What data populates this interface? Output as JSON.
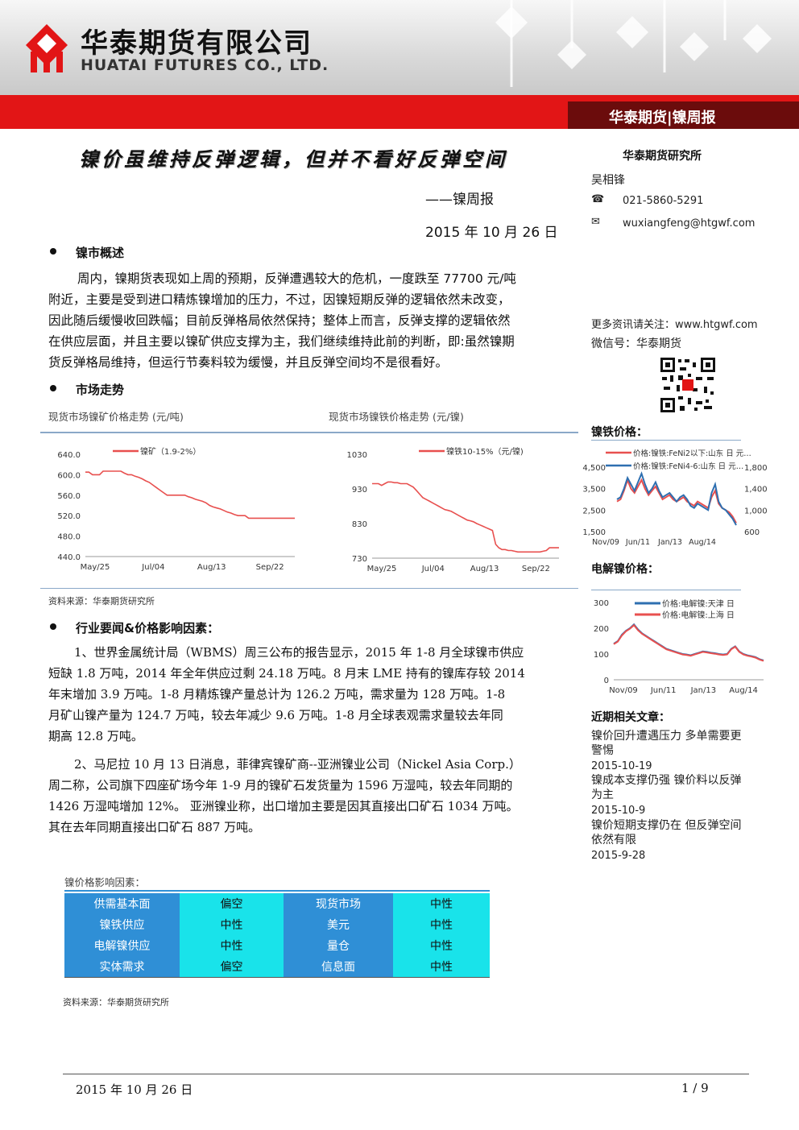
{
  "header": {
    "company_cn": "华泰期货有限公司",
    "company_en": "HUATAI FUTURES CO., LTD.",
    "tag": "华泰期货|镍周报",
    "brand_red": "#e21516"
  },
  "title": "镍价虽维持反弹逻辑，但并不看好反弹空间",
  "subtitle": "——镍周报",
  "date": "2015 年 10 月 26 日",
  "sections": {
    "overview": {
      "heading": "镍市概述",
      "lines": [
        "周内，镍期货表现如上周的预期，反弹遭遇较大的危机，一度跌至 77700 元/吨",
        "附近，主要是受到进口精炼镍增加的压力，不过，因镍短期反弹的逻辑依然未改变，",
        "因此随后缓慢收回跌幅；目前反弹格局依然保持；整体上而言，反弹支撑的逻辑依然",
        "在供应层面，并且主要以镍矿供应支撑为主，我们继续维持此前的判断，即:虽然镍期",
        "货反弹格局维持，但运行节奏料较为缓慢，并且反弹空间均不是很看好。"
      ]
    },
    "market": {
      "heading": "市场走势",
      "chart1_caption": "现货市场镍矿价格走势 (元/吨)",
      "chart2_caption": "现货市场镍铁价格走势 (元/镍)",
      "source": "资料来源：华泰期货研究所"
    },
    "news": {
      "heading": "行业要闻&价格影响因素：",
      "p1": [
        "1、世界金属统计局（WBMS）周三公布的报告显示，2015 年 1-8 月全球镍市供应",
        "短缺 1.8 万吨，2014 年全年供应过剩 24.18 万吨。8 月末 LME 持有的镍库存较 2014",
        "年末增加 3.9 万吨。1-8 月精炼镍产量总计为 126.2 万吨，需求量为 128 万吨。1-8",
        "月矿山镍产量为 124.7 万吨，较去年减少 9.6 万吨。1-8 月全球表观需求量较去年同",
        "期高 12.8 万吨。"
      ],
      "p2": [
        "2、马尼拉 10 月 13 日消息，菲律宾镍矿商--亚洲镍业公司（Nickel Asia Corp.）",
        "周二称，公司旗下四座矿场今年 1-9 月的镍矿石发货量为 1596 万湿吨，较去年同期的",
        "1426 万湿吨增加 12%。      亚洲镍业称，出口增加主要是因其直接出口矿石 1034 万吨。",
        "其在去年同期直接出口矿石 887 万吨。"
      ]
    },
    "factors": {
      "caption": "镍价格影响因素：",
      "rows": [
        [
          "供需基本面",
          "偏空",
          "现货市场",
          "中性"
        ],
        [
          "镍铁供应",
          "中性",
          "美元",
          "中性"
        ],
        [
          "电解镍供应",
          "中性",
          "量仓",
          "中性"
        ],
        [
          "实体需求",
          "偏空",
          "信息面",
          "中性"
        ]
      ],
      "source": "资料来源：华泰期货研究所"
    }
  },
  "sidebar": {
    "institute": "华泰期货研究所",
    "analyst": "吴相锋",
    "phone": "021-5860-5291",
    "email": "wuxiangfeng@htgwf.com",
    "more_info": "更多资讯请关注：www.htgwf.com",
    "wechat": "微信号：华泰期货",
    "nife_title": "镍铁价格：",
    "elec_title": "电解镍价格：",
    "recent_title": "近期相关文章：",
    "articles": [
      {
        "title": "镍价回升遭遇压力 多单需要更警惕",
        "date": "2015-10-19"
      },
      {
        "title": "镍成本支撑仍强 镍价料以反弹为主",
        "date": "2015-10-9"
      },
      {
        "title": "镍价短期支撑仍在 但反弹空间依然有限",
        "date": "2015-9-28"
      }
    ]
  },
  "footer": {
    "date": "2015 年 10 月 26 日",
    "page": "1 / 9"
  },
  "chart_data": [
    {
      "type": "line",
      "legend": [
        "镍矿（1.9-2%）"
      ],
      "x_ticks": [
        "May/25",
        "Jul/04",
        "Aug/13",
        "Sep/22"
      ],
      "ylim": [
        440,
        640
      ],
      "y_ticks": [
        "640.0",
        "600.0",
        "560.0",
        "520.0",
        "480.0",
        "440.0"
      ],
      "series": [
        {
          "name": "镍矿（1.9-2%）",
          "color": "#e8504f",
          "values": [
            605,
            605,
            600,
            600,
            600,
            607,
            607,
            607,
            607,
            607,
            607,
            603,
            600,
            600,
            597,
            595,
            592,
            588,
            585,
            580,
            575,
            570,
            565,
            560,
            560,
            560,
            560,
            560,
            560,
            557,
            555,
            552,
            550,
            548,
            545,
            540,
            537,
            535,
            533,
            530,
            527,
            525,
            522,
            520,
            520,
            520,
            515,
            515,
            515,
            515,
            515,
            515,
            515,
            515,
            515,
            515,
            515,
            515,
            515,
            515
          ]
        }
      ]
    },
    {
      "type": "line",
      "legend": [
        "镍铁10-15%（元/镍)"
      ],
      "x_ticks": [
        "May/25",
        "Jul/04",
        "Aug/13",
        "Sep/22"
      ],
      "ylim": [
        730,
        1030
      ],
      "y_ticks": [
        "1030",
        "930",
        "830",
        "730"
      ],
      "series": [
        {
          "name": "镍铁10-15%（元/镍)",
          "color": "#e8504f",
          "values": [
            945,
            945,
            945,
            940,
            945,
            950,
            950,
            948,
            948,
            945,
            945,
            945,
            940,
            935,
            925,
            915,
            905,
            900,
            895,
            890,
            885,
            880,
            875,
            870,
            868,
            865,
            860,
            855,
            850,
            845,
            840,
            838,
            835,
            830,
            826,
            822,
            818,
            814,
            810,
            770,
            760,
            755,
            755,
            752,
            752,
            750,
            748,
            748,
            748,
            748,
            748,
            748,
            748,
            748,
            750,
            752,
            760,
            760,
            760,
            760
          ]
        }
      ]
    },
    {
      "type": "line",
      "legend": [
        "价格:镍铁:FeNi2以下:山东 日 元…",
        "价格:镍铁:FeNi4-6:山东 日 元…"
      ],
      "x_ticks": [
        "Nov/09",
        "Jun/11",
        "Jan/13",
        "Aug/14"
      ],
      "y_left_ticks": [
        "4,500",
        "3,500",
        "2,500",
        "1,500"
      ],
      "y_right_ticks": [
        "1,800",
        "1,400",
        "1,000",
        "600"
      ],
      "series": [
        {
          "name": "价格:镍铁:FeNi2以下:山东 日 元…",
          "color": "#e8504f",
          "values": [
            2900,
            3000,
            3400,
            3900,
            3500,
            3300,
            3600,
            3900,
            3500,
            3200,
            3400,
            3600,
            3300,
            3000,
            3100,
            3200,
            3000,
            2900,
            3000,
            3100,
            2900,
            2800,
            2700,
            2900,
            2800,
            2700,
            2600,
            3100,
            3400,
            2800,
            2600,
            2500,
            2400,
            2200,
            1900
          ]
        },
        {
          "name": "价格:镍铁:FeNi4-6:山东 日 元…",
          "color": "#2e6fb0",
          "values": [
            3000,
            3100,
            3500,
            4000,
            3700,
            3400,
            3800,
            4200,
            3700,
            3300,
            3500,
            3800,
            3400,
            3100,
            3200,
            3300,
            3100,
            2900,
            3100,
            3200,
            3000,
            2700,
            2600,
            2800,
            2700,
            2600,
            2500,
            3300,
            3700,
            2900,
            2600,
            2500,
            2300,
            2100,
            1800
          ]
        }
      ]
    },
    {
      "type": "line",
      "legend": [
        "价格:电解镍:天津 日",
        "价格:电解镍:上海 日"
      ],
      "x_ticks": [
        "Nov/09",
        "Jun/11",
        "Jan/13",
        "Aug/14"
      ],
      "ylim": [
        0,
        300
      ],
      "y_ticks": [
        "300",
        "200",
        "100",
        "0"
      ],
      "series": [
        {
          "name": "价格:电解镍:天津 日",
          "color": "#2e6fb0",
          "values": [
            140,
            150,
            175,
            190,
            200,
            215,
            195,
            180,
            170,
            160,
            150,
            140,
            130,
            120,
            115,
            110,
            105,
            100,
            98,
            95,
            100,
            105,
            110,
            108,
            105,
            103,
            100,
            98,
            100,
            120,
            130,
            110,
            100,
            95,
            92,
            88,
            80,
            75
          ]
        },
        {
          "name": "价格:电解镍:上海 日",
          "color": "#e8504f",
          "values": [
            138,
            148,
            172,
            188,
            198,
            212,
            192,
            178,
            168,
            158,
            148,
            138,
            128,
            118,
            113,
            108,
            103,
            98,
            96,
            93,
            98,
            103,
            108,
            106,
            103,
            101,
            98,
            96,
            98,
            118,
            128,
            108,
            98,
            93,
            90,
            86,
            78,
            73
          ]
        }
      ]
    }
  ]
}
